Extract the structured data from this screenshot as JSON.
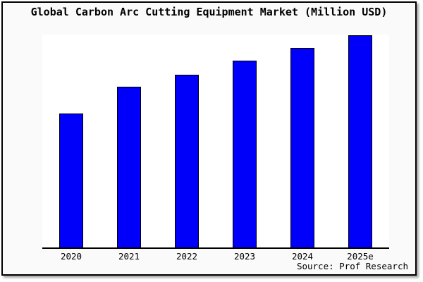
{
  "window": {
    "background": "#fafafa",
    "plot_background": "#ffffff",
    "border_color": "#000000",
    "shadow_color": "#aaaaaa"
  },
  "chart": {
    "title": "Global Carbon Arc Cutting Equipment Market (Million USD)",
    "source_note": "Source: Prof Research"
  },
  "chart_data": {
    "type": "bar",
    "title": "Global Carbon Arc Cutting Equipment Market (Million USD)",
    "categories": [
      "2020",
      "2021",
      "2022",
      "2023",
      "2024",
      "2025e"
    ],
    "values": [
      63,
      75.5,
      81.5,
      88,
      94,
      100
    ],
    "value_note": "No y-axis scale or gridlines shown; values are relative bar heights with 2025e = 100",
    "xlabel": "",
    "ylabel": "",
    "ylim": [
      0,
      105
    ],
    "grid": false,
    "legend": false,
    "bar_color": "#0000fa",
    "bar_border_color": "#000000",
    "source": "Source: Prof Research"
  }
}
